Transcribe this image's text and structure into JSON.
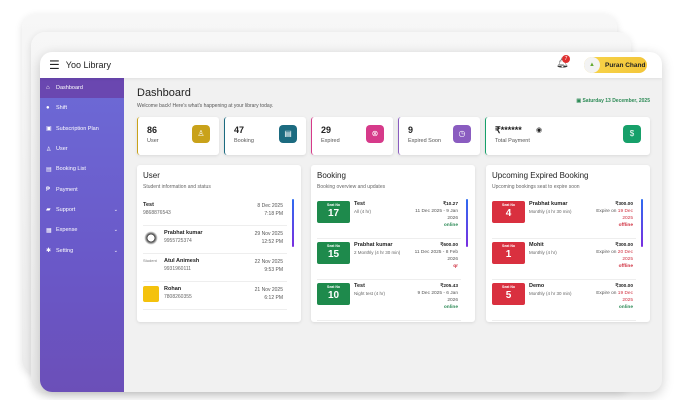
{
  "app": {
    "title": "Yoo Library",
    "notifications": "7",
    "user_name": "Puran Chand"
  },
  "sidebar": {
    "items": [
      {
        "label": "Dashboard",
        "icon": "home-icon",
        "active": true
      },
      {
        "label": "Shift",
        "icon": "clock-icon"
      },
      {
        "label": "Subscription Plan",
        "icon": "card-icon"
      },
      {
        "label": "User",
        "icon": "user-icon"
      },
      {
        "label": "Booking List",
        "icon": "book-icon"
      },
      {
        "label": "Payment",
        "icon": "payment-icon"
      },
      {
        "label": "Support",
        "icon": "chat-icon",
        "expandable": true
      },
      {
        "label": "Expense",
        "icon": "wallet-icon",
        "expandable": true
      },
      {
        "label": "Setting",
        "icon": "gear-icon",
        "expandable": true
      }
    ]
  },
  "page": {
    "title": "Dashboard",
    "welcome": "Welcome back! Here's what's happening at your library today.",
    "date": "Saturday 13 December, 2025"
  },
  "stats": [
    {
      "value": "86",
      "label": "User",
      "color": "#c9a21a"
    },
    {
      "value": "47",
      "label": "Booking",
      "color": "#1c6b80"
    },
    {
      "value": "29",
      "label": "Expired",
      "color": "#d63a8a"
    },
    {
      "value": "9",
      "label": "Expired Soon",
      "color": "#8a5cc0"
    },
    {
      "value": "₹******",
      "label": "Total Payment",
      "color": "#17a06a"
    }
  ],
  "users": {
    "title": "User",
    "subtitle": "Student information and status",
    "rows": [
      {
        "name": "Test",
        "phone": "9868876543",
        "date": "8 Dec 2025",
        "time": "7:18 PM"
      },
      {
        "name": "Prabhat kumar",
        "phone": "9955725374",
        "date": "29 Nov 2025",
        "time": "12:52 PM"
      },
      {
        "name": "Atul Animesh",
        "phone": "9931960111",
        "date": "22 Nov 2025",
        "time": "9:53 PM",
        "avatar_alt": "Student"
      },
      {
        "name": "Rohan",
        "phone": "7808260355",
        "date": "21 Nov 2025",
        "time": "6:12 PM"
      }
    ]
  },
  "booking": {
    "title": "Booking",
    "subtitle": "Booking overview and updates",
    "seat_label": "Seat No",
    "rows": [
      {
        "seat": "17",
        "name": "Test",
        "plan": "All (4 hr)",
        "price": "₹10.27",
        "range": "11 Dec 2025 - 9 Jan 2026",
        "status": "online"
      },
      {
        "seat": "15",
        "name": "Prabhat kumar",
        "plan": "2 Monthly (4 hr 30 min)",
        "price": "₹600.00",
        "range": "11 Dec 2025 - 8 Feb 2026",
        "status": "qr"
      },
      {
        "seat": "10",
        "name": "Test",
        "plan": "Night test (4 hr)",
        "price": "₹205.43",
        "range": "9 Dec 2025 - 6 Jan 2026",
        "status": "online"
      }
    ]
  },
  "expiring": {
    "title": "Upcoming Expired Booking",
    "subtitle": "Upcoming bookings seat to expire soon",
    "seat_label": "Seat No",
    "expire_prefix": "Expire on",
    "rows": [
      {
        "seat": "4",
        "name": "Prabhat kumar",
        "plan": "Monthly (4 hr 30 min)",
        "price": "₹300.00",
        "date": "19 Dec 2025",
        "status": "offline"
      },
      {
        "seat": "1",
        "name": "Mohit",
        "plan": "Monthly (4 hr)",
        "price": "₹300.00",
        "date": "20 Dec 2025",
        "status": "offline"
      },
      {
        "seat": "5",
        "name": "Demo",
        "plan": "Monthly (4 hr 30 min)",
        "price": "₹300.00",
        "date": "19 Dec 2025",
        "status": "online"
      }
    ]
  },
  "colors": {
    "online": "#2e8b57",
    "offline": "#d03040",
    "booking_seat": "#1e8a4c",
    "expire_seat": "#d9303f"
  }
}
